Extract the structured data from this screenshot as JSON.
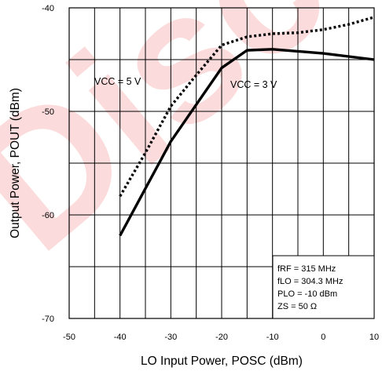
{
  "chart_data": {
    "type": "line",
    "xlabel": "LO Input Power, POSC (dBm)",
    "ylabel": "Output Power, POUT (dBm)",
    "xlim": [
      -50,
      10
    ],
    "ylim": [
      -70,
      -40
    ],
    "x_ticks": [
      "-50",
      "-40",
      "-30",
      "-20",
      "-10",
      "0",
      "10"
    ],
    "y_ticks": [
      "-40",
      "-50",
      "-60",
      "-70"
    ],
    "grid": true,
    "series": [
      {
        "name": "VCC = 5 V",
        "style": "dotted",
        "color": "#000000",
        "x": [
          -40,
          -35,
          -30,
          -25,
          -20,
          -15,
          -10,
          -5,
          0,
          5,
          10
        ],
        "y": [
          -58.2,
          -54.0,
          -49.5,
          -46.5,
          -43.6,
          -42.8,
          -42.5,
          -42.4,
          -42.1,
          -41.6,
          -40.9
        ]
      },
      {
        "name": "VCC = 3 V",
        "style": "solid",
        "color": "#000000",
        "x": [
          -40,
          -30,
          -20,
          -15,
          -10,
          0,
          10
        ],
        "y": [
          -62.0,
          -52.9,
          -45.8,
          -44.1,
          -44.0,
          -44.4,
          -45.0
        ]
      }
    ],
    "annotations": [
      "VCC = 5 V",
      "VCC = 3 V"
    ],
    "conditions": [
      "fRF = 315 MHz",
      "fLO = 304.3 MHz",
      "PLO = -10 dBm",
      "ZS = 50 Ω"
    ]
  },
  "watermark": {
    "text": "Disc",
    "color": "#e8272a"
  }
}
